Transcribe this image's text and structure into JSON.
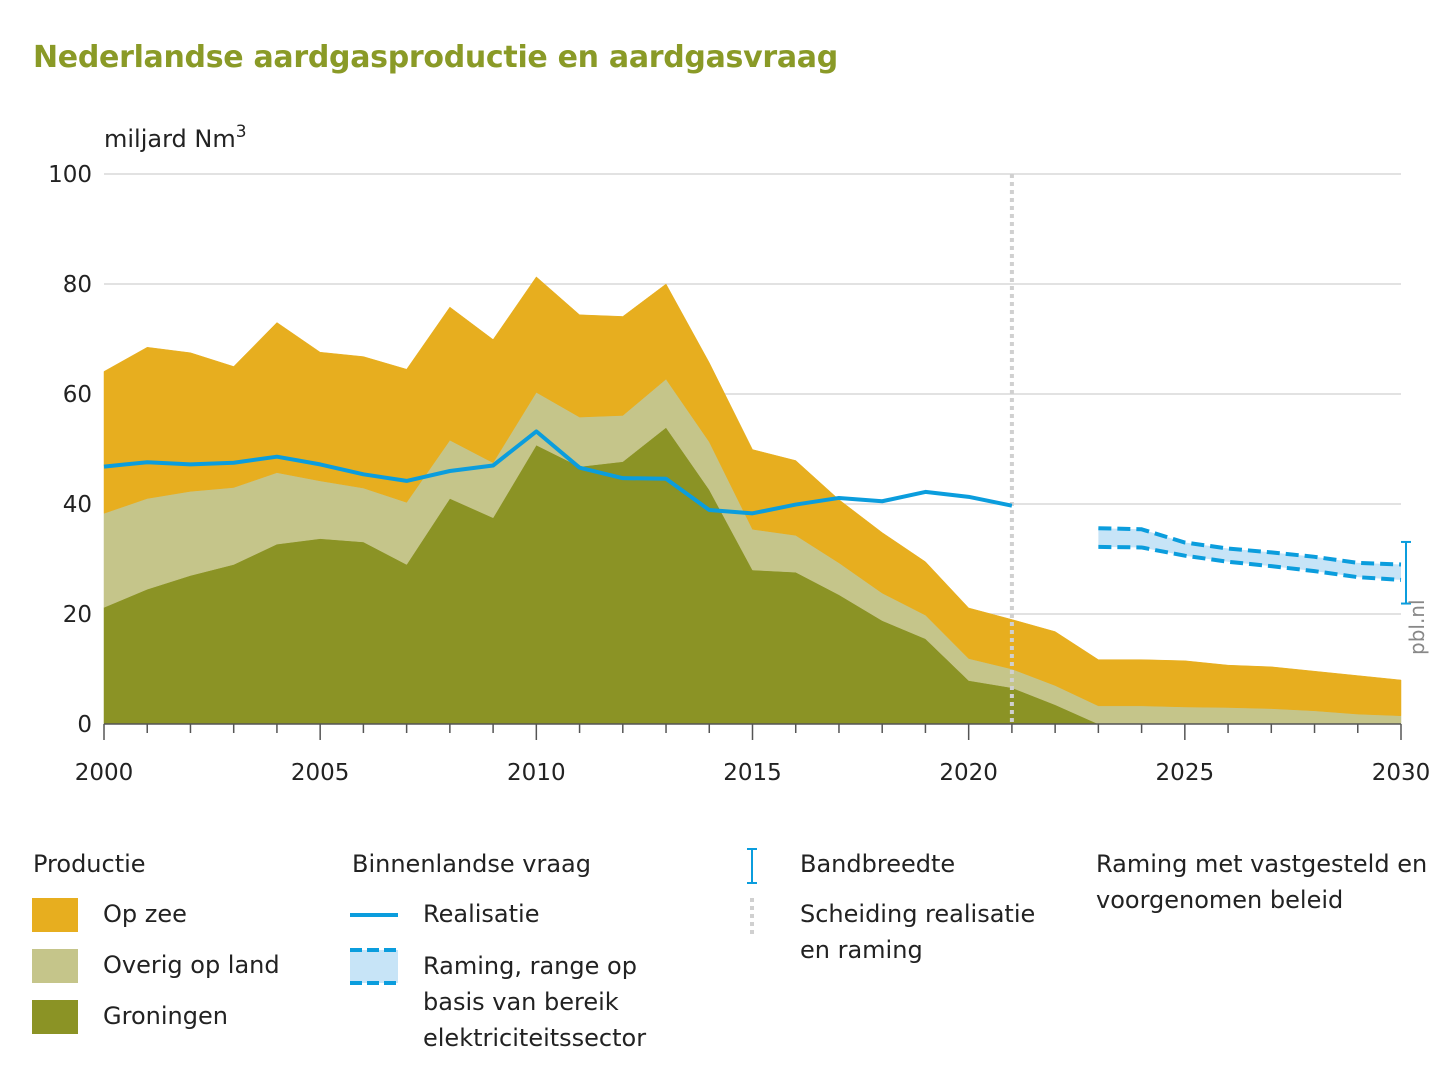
{
  "chart_data": {
    "type": "area",
    "title": "Nederlandse aardgasproductie en aardgasvraag",
    "ylabel": "miljard Nm",
    "ylabel_sup": "3",
    "ylim": [
      0,
      100
    ],
    "yticks": [
      0,
      20,
      40,
      60,
      80,
      100
    ],
    "xlim": [
      2000,
      2030
    ],
    "xticks": [
      2000,
      2005,
      2010,
      2015,
      2020,
      2025,
      2030
    ],
    "x": [
      2000,
      2001,
      2002,
      2003,
      2004,
      2005,
      2006,
      2007,
      2008,
      2009,
      2010,
      2011,
      2012,
      2013,
      2014,
      2015,
      2016,
      2017,
      2018,
      2019,
      2020,
      2021,
      2022,
      2023,
      2024,
      2025,
      2026,
      2027,
      2028,
      2029,
      2030
    ],
    "series": [
      {
        "name": "Groningen",
        "color": "#8b9325",
        "values": [
          21.2,
          24.5,
          27,
          29,
          32.7,
          33.7,
          33.1,
          29,
          41,
          37.5,
          50.7,
          46.8,
          47.7,
          53.9,
          42.6,
          28,
          27.6,
          23.5,
          18.8,
          15.5,
          7.9,
          6.6,
          3.5,
          0,
          0,
          0,
          0,
          0,
          0,
          0,
          0
        ]
      },
      {
        "name": "Overig op land",
        "color": "#c5c58a",
        "values": [
          17.1,
          16.5,
          15.3,
          14,
          13,
          10.5,
          9.8,
          11.3,
          10.6,
          10,
          9.6,
          9,
          8.4,
          8.8,
          8.7,
          7.4,
          6.7,
          5.8,
          5,
          4.3,
          4,
          3.4,
          3.5,
          3.3,
          3.3,
          3.1,
          3,
          2.8,
          2.4,
          1.8,
          1.5
        ]
      },
      {
        "name": "Op zee",
        "color": "#e7ae1f",
        "values": [
          25.8,
          27.5,
          25.2,
          22,
          27.3,
          23.4,
          23.9,
          24.2,
          24.2,
          22.4,
          21,
          18.6,
          18,
          17.3,
          14.4,
          14.5,
          13.6,
          11.5,
          11,
          9.7,
          9.2,
          9,
          9.8,
          8.4,
          8.4,
          8.4,
          7.7,
          7.6,
          7.2,
          7,
          6.5
        ]
      }
    ],
    "demand_realisatie": {
      "name": "Realisatie",
      "color": "#0b9ddd",
      "x": [
        2000,
        2001,
        2002,
        2003,
        2004,
        2005,
        2006,
        2007,
        2008,
        2009,
        2010,
        2011,
        2012,
        2013,
        2014,
        2015,
        2016,
        2017,
        2018,
        2019,
        2020,
        2021
      ],
      "values": [
        46.8,
        47.6,
        47.2,
        47.5,
        48.6,
        47.2,
        45.4,
        44.2,
        46,
        47,
        53.2,
        46.6,
        44.7,
        44.6,
        38.9,
        38.3,
        39.9,
        41.1,
        40.5,
        42.2,
        41.3,
        39.7
      ]
    },
    "demand_raming": {
      "name": "Raming, range op basis van bereik elektriciteitssector",
      "color": "#0b9ddd",
      "fill": "#c7e4f7",
      "x": [
        2023,
        2024,
        2025,
        2026,
        2027,
        2028,
        2029,
        2030
      ],
      "upper": [
        35.6,
        35.4,
        33,
        31.9,
        31.2,
        30.4,
        29.3,
        29
      ],
      "lower": [
        32.2,
        32.1,
        30.6,
        29.5,
        28.7,
        27.8,
        26.7,
        26.2
      ]
    },
    "bandbreedte": {
      "x": 2030,
      "low": 21.9,
      "high": 33.1
    },
    "separator_x": 2021,
    "grid": true
  },
  "legend": {
    "productie_head": "Productie",
    "op_zee": "Op zee",
    "overig": "Overig op land",
    "groningen": "Groningen",
    "vraag_head": "Binnenlandse vraag",
    "realisatie": "Realisatie",
    "raming_1": "Raming, range op",
    "raming_2": "basis van bereik",
    "raming_3": "elektriciteitssector",
    "bandbreedte": "Bandbreedte",
    "scheiding_1": "Scheiding realisatie",
    "scheiding_2": "en raming",
    "beleid_1": "Raming met vastgesteld en",
    "beleid_2": "voorgenomen beleid"
  },
  "watermark": "pbl.nl"
}
